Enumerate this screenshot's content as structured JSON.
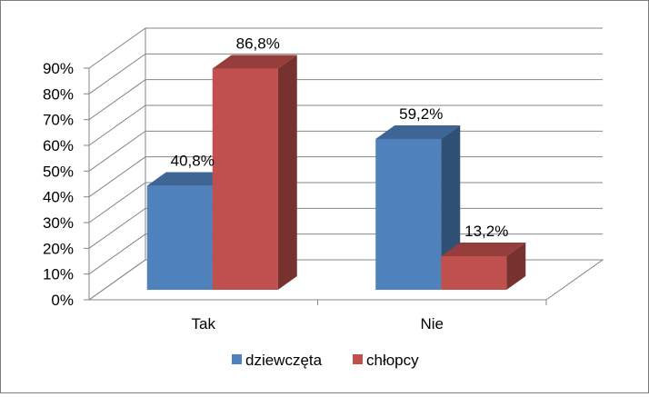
{
  "chart_data": {
    "type": "bar",
    "style": "3d-clustered-column",
    "categories": [
      "Tak",
      "Nie"
    ],
    "series": [
      {
        "name": "dziewczęta",
        "values": [
          40.8,
          59.2
        ],
        "labels": [
          "40,8%",
          "59,2%"
        ],
        "color": "#4f81bd"
      },
      {
        "name": "chłopcy",
        "values": [
          86.8,
          13.2
        ],
        "labels": [
          "86,8%",
          "13,2%"
        ],
        "color": "#c0504d"
      }
    ],
    "ylim": [
      0,
      90
    ],
    "yticks": [
      0,
      10,
      20,
      30,
      40,
      50,
      60,
      70,
      80,
      90
    ],
    "ytick_labels": [
      "0%",
      "10%",
      "20%",
      "30%",
      "40%",
      "50%",
      "60%",
      "70%",
      "80%",
      "90%"
    ],
    "grid": true,
    "legend": "bottom"
  }
}
